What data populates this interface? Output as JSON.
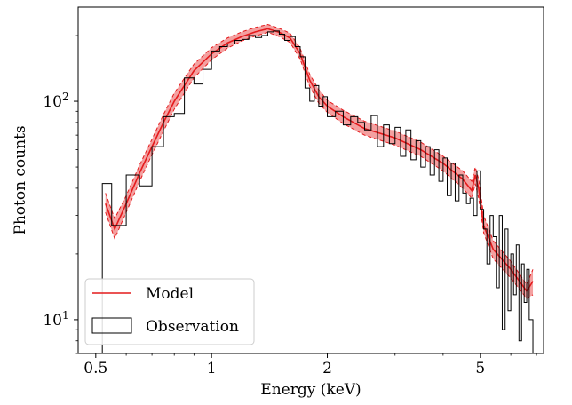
{
  "chart_data": {
    "type": "line",
    "title": "",
    "xlabel": "Energy (keV)",
    "ylabel": "Photon counts",
    "xscale": "log",
    "yscale": "log",
    "xlim": [
      0.45,
      7.3
    ],
    "ylim": [
      7,
      270
    ],
    "grid": false,
    "legend": {
      "placement": "lower-left",
      "entries": [
        "Model",
        "Observation"
      ]
    },
    "x_ticks": [
      {
        "value": 0.5,
        "label": "0.5"
      },
      {
        "value": 1,
        "label": "1"
      },
      {
        "value": 2,
        "label": "2"
      },
      {
        "value": 5,
        "label": "5"
      }
    ],
    "y_ticks": [
      {
        "value": 10,
        "label": "10",
        "exp": "1"
      },
      {
        "value": 100,
        "label": "10",
        "exp": "2"
      }
    ],
    "series": [
      {
        "name": "Model",
        "style": "line-with-band",
        "color": "#e41a1c",
        "band_color": "#f08080",
        "x": [
          0.53,
          0.56,
          0.6,
          0.65,
          0.7,
          0.75,
          0.8,
          0.9,
          1.0,
          1.1,
          1.2,
          1.3,
          1.4,
          1.5,
          1.6,
          1.7,
          1.8,
          1.9,
          2.0,
          2.2,
          2.5,
          3.0,
          3.5,
          4.0,
          4.5,
          4.75,
          4.85,
          4.95,
          5.1,
          5.4,
          6.0,
          6.6,
          6.85
        ],
        "y": [
          34,
          26,
          34,
          47,
          62,
          80,
          100,
          138,
          165,
          185,
          198,
          208,
          215,
          207,
          195,
          165,
          125,
          105,
          95,
          85,
          75,
          68,
          60,
          52,
          44,
          39,
          46,
          40,
          27,
          21,
          17,
          13.5,
          15
        ],
        "lower": [
          31,
          23.5,
          31,
          43,
          57,
          73,
          92,
          128,
          155,
          175,
          189,
          199,
          207,
          198,
          186,
          156,
          117,
          98,
          89,
          79,
          70,
          63,
          56,
          48,
          40,
          36,
          42,
          36,
          25,
          19,
          15.5,
          12.5,
          13
        ],
        "upper": [
          38,
          29,
          37,
          51,
          67,
          87,
          109,
          148,
          176,
          195,
          208,
          218,
          225,
          216,
          205,
          175,
          133,
          113,
          101,
          91,
          81,
          73,
          65,
          56,
          48,
          43,
          50,
          44,
          30,
          23,
          18.5,
          14.5,
          17
        ]
      },
      {
        "name": "Observation",
        "style": "step",
        "color": "#000000",
        "edges": [
          0.52,
          0.55,
          0.6,
          0.65,
          0.7,
          0.75,
          0.8,
          0.85,
          0.9,
          0.95,
          1.0,
          1.05,
          1.1,
          1.15,
          1.2,
          1.25,
          1.3,
          1.35,
          1.4,
          1.45,
          1.5,
          1.55,
          1.6,
          1.65,
          1.7,
          1.75,
          1.8,
          1.85,
          1.9,
          1.95,
          2.0,
          2.1,
          2.2,
          2.3,
          2.4,
          2.5,
          2.6,
          2.7,
          2.8,
          2.9,
          3.0,
          3.1,
          3.2,
          3.3,
          3.4,
          3.5,
          3.6,
          3.7,
          3.8,
          3.9,
          4.0,
          4.1,
          4.2,
          4.3,
          4.4,
          4.5,
          4.6,
          4.7,
          4.8,
          4.9,
          5.0,
          5.1,
          5.2,
          5.3,
          5.4,
          5.5,
          5.6,
          5.7,
          5.8,
          5.9,
          6.0,
          6.1,
          6.2,
          6.3,
          6.4,
          6.5,
          6.6,
          6.7,
          6.85
        ],
        "counts": [
          42,
          27,
          46,
          41,
          62,
          85,
          88,
          128,
          120,
          140,
          170,
          178,
          183,
          190,
          192,
          200,
          196,
          200,
          208,
          210,
          203,
          190,
          198,
          178,
          160,
          115,
          100,
          118,
          95,
          105,
          85,
          90,
          78,
          85,
          80,
          74,
          86,
          62,
          78,
          64,
          76,
          56,
          74,
          54,
          66,
          50,
          62,
          46,
          60,
          43,
          55,
          37,
          52,
          35,
          46,
          38,
          34,
          36,
          30,
          48,
          32,
          26,
          18,
          30,
          24,
          14,
          30,
          9,
          26,
          11,
          20,
          13,
          22,
          8,
          18,
          12,
          17,
          10
        ]
      }
    ]
  }
}
